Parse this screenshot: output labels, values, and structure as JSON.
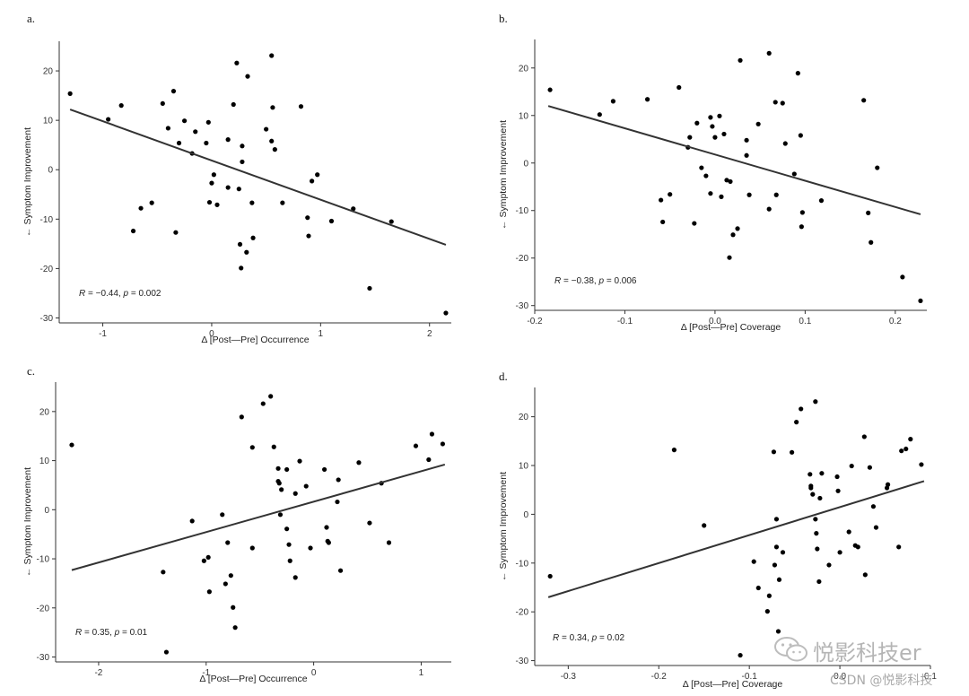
{
  "watermark": {
    "brand": "悦影科技er",
    "credit": "CSDN @悦影科技",
    "logo_icon": "wechat-icon"
  },
  "chart_data": [
    {
      "panel": "a.",
      "type": "scatter",
      "xlabel": "Δ [Post—Pre] Occurrence",
      "ylabel": "← Symptom Improvement",
      "xlim": [
        -1.4,
        2.2
      ],
      "ylim": [
        -31,
        26
      ],
      "xticks": [
        -1,
        0,
        1,
        2
      ],
      "yticks": [
        -30,
        -20,
        -10,
        0,
        10,
        20
      ],
      "grid": false,
      "annotation": {
        "r_label": "R",
        "r_value": " = −0.44, ",
        "p_label": "p",
        "p_value": " = 0.002"
      },
      "fit_line": {
        "x": [
          -1.3,
          2.15
        ],
        "y": [
          12.2,
          -15.2
        ]
      },
      "points": [
        [
          -1.3,
          15.4
        ],
        [
          -0.95,
          10.2
        ],
        [
          -0.83,
          13.0
        ],
        [
          -0.72,
          -12.4
        ],
        [
          -0.65,
          -7.8
        ],
        [
          -0.55,
          -6.7
        ],
        [
          -0.45,
          13.4
        ],
        [
          -0.4,
          8.4
        ],
        [
          -0.35,
          15.9
        ],
        [
          -0.33,
          -12.7
        ],
        [
          -0.3,
          5.4
        ],
        [
          -0.25,
          9.9
        ],
        [
          -0.18,
          3.3
        ],
        [
          -0.15,
          7.7
        ],
        [
          -0.05,
          5.4
        ],
        [
          -0.03,
          9.6
        ],
        [
          -0.02,
          -6.6
        ],
        [
          0.0,
          -2.7
        ],
        [
          0.02,
          -1.0
        ],
        [
          0.05,
          -7.1
        ],
        [
          0.15,
          6.1
        ],
        [
          0.15,
          -3.6
        ],
        [
          0.2,
          13.2
        ],
        [
          0.23,
          21.6
        ],
        [
          0.25,
          -3.9
        ],
        [
          0.26,
          -15.1
        ],
        [
          0.27,
          -19.9
        ],
        [
          0.28,
          4.8
        ],
        [
          0.28,
          1.6
        ],
        [
          0.32,
          -16.7
        ],
        [
          0.33,
          18.9
        ],
        [
          0.37,
          -6.7
        ],
        [
          0.38,
          -13.8
        ],
        [
          0.5,
          8.2
        ],
        [
          0.55,
          23.1
        ],
        [
          0.55,
          5.8
        ],
        [
          0.56,
          12.6
        ],
        [
          0.58,
          4.1
        ],
        [
          0.65,
          -6.7
        ],
        [
          0.82,
          12.8
        ],
        [
          0.88,
          -9.7
        ],
        [
          0.89,
          -13.4
        ],
        [
          0.92,
          -2.3
        ],
        [
          0.97,
          -1.0
        ],
        [
          1.1,
          -10.4
        ],
        [
          1.3,
          -7.9
        ],
        [
          1.45,
          -24.0
        ],
        [
          1.65,
          -10.5
        ],
        [
          2.15,
          -29.0
        ]
      ]
    },
    {
      "panel": "b.",
      "type": "scatter",
      "xlabel": "Δ [Post—Pre] Coverage",
      "ylabel": "← Symptom Improvement",
      "xlim": [
        -0.2,
        0.235
      ],
      "ylim": [
        -31,
        26
      ],
      "xticks": [
        -0.2,
        -0.1,
        0.0,
        0.1,
        0.2
      ],
      "xtick_labels": [
        "-0.2",
        "-0.1",
        "0.0",
        "0.1",
        "0.2"
      ],
      "yticks": [
        -30,
        -20,
        -10,
        0,
        10,
        20
      ],
      "grid": false,
      "annotation": {
        "r_label": "R",
        "r_value": " = −0.38, ",
        "p_label": "p",
        "p_value": " = 0.006"
      },
      "fit_line": {
        "x": [
          -0.185,
          0.228
        ],
        "y": [
          12.0,
          -10.8
        ]
      },
      "points": [
        [
          -0.183,
          15.4
        ],
        [
          -0.128,
          10.2
        ],
        [
          -0.113,
          13.0
        ],
        [
          -0.075,
          13.4
        ],
        [
          -0.06,
          -7.8
        ],
        [
          -0.058,
          -12.4
        ],
        [
          -0.05,
          -6.6
        ],
        [
          -0.04,
          15.9
        ],
        [
          -0.03,
          3.3
        ],
        [
          -0.028,
          5.4
        ],
        [
          -0.023,
          -12.7
        ],
        [
          -0.02,
          8.4
        ],
        [
          -0.015,
          -1.0
        ],
        [
          -0.01,
          -2.7
        ],
        [
          -0.005,
          -6.4
        ],
        [
          -0.005,
          9.6
        ],
        [
          -0.003,
          7.7
        ],
        [
          0.0,
          5.4
        ],
        [
          0.005,
          9.9
        ],
        [
          0.007,
          -7.1
        ],
        [
          0.01,
          6.1
        ],
        [
          0.013,
          -3.6
        ],
        [
          0.017,
          -3.9
        ],
        [
          0.016,
          -19.9
        ],
        [
          0.02,
          -15.1
        ],
        [
          0.025,
          -13.8
        ],
        [
          0.028,
          21.6
        ],
        [
          0.035,
          1.6
        ],
        [
          0.035,
          4.8
        ],
        [
          0.038,
          -6.7
        ],
        [
          0.048,
          8.2
        ],
        [
          0.06,
          23.1
        ],
        [
          0.06,
          -9.7
        ],
        [
          0.067,
          12.8
        ],
        [
          0.068,
          -6.7
        ],
        [
          0.075,
          12.6
        ],
        [
          0.078,
          4.1
        ],
        [
          0.088,
          -2.3
        ],
        [
          0.092,
          18.9
        ],
        [
          0.095,
          5.8
        ],
        [
          0.096,
          -13.4
        ],
        [
          0.097,
          -10.4
        ],
        [
          0.118,
          -7.9
        ],
        [
          0.165,
          13.2
        ],
        [
          0.17,
          -10.5
        ],
        [
          0.173,
          -16.7
        ],
        [
          0.18,
          -1.0
        ],
        [
          0.208,
          -24.0
        ],
        [
          0.228,
          -29.0
        ]
      ]
    },
    {
      "panel": "c.",
      "type": "scatter",
      "xlabel": "Δ [Post—Pre] Occurrence",
      "ylabel": "← Symptom Improvement",
      "xlim": [
        -2.4,
        1.28
      ],
      "ylim": [
        -31,
        26
      ],
      "xticks": [
        -2,
        -1,
        0,
        1
      ],
      "yticks": [
        -30,
        -20,
        -10,
        0,
        10,
        20
      ],
      "grid": false,
      "annotation": {
        "r_label": "R",
        "r_value": " = 0.35, ",
        "p_label": "p",
        "p_value": " = 0.01"
      },
      "fit_line": {
        "x": [
          -2.25,
          1.22
        ],
        "y": [
          -12.3,
          9.2
        ]
      },
      "points": [
        [
          -2.25,
          13.2
        ],
        [
          -1.4,
          -12.7
        ],
        [
          -1.37,
          -29.0
        ],
        [
          -1.13,
          -2.3
        ],
        [
          -1.02,
          -10.4
        ],
        [
          -0.98,
          -9.7
        ],
        [
          -0.97,
          -16.7
        ],
        [
          -0.85,
          -1.0
        ],
        [
          -0.82,
          -15.1
        ],
        [
          -0.8,
          -6.7
        ],
        [
          -0.77,
          -13.4
        ],
        [
          -0.75,
          -19.9
        ],
        [
          -0.73,
          -24.0
        ],
        [
          -0.67,
          18.9
        ],
        [
          -0.57,
          12.7
        ],
        [
          -0.57,
          -7.8
        ],
        [
          -0.47,
          21.6
        ],
        [
          -0.4,
          23.1
        ],
        [
          -0.37,
          12.8
        ],
        [
          -0.33,
          8.4
        ],
        [
          -0.33,
          5.8
        ],
        [
          -0.32,
          5.4
        ],
        [
          -0.31,
          -1.0
        ],
        [
          -0.3,
          4.1
        ],
        [
          -0.25,
          8.2
        ],
        [
          -0.25,
          -3.9
        ],
        [
          -0.23,
          -7.1
        ],
        [
          -0.22,
          -10.4
        ],
        [
          -0.17,
          -13.8
        ],
        [
          -0.17,
          3.3
        ],
        [
          -0.13,
          9.9
        ],
        [
          -0.07,
          4.8
        ],
        [
          -0.03,
          -7.8
        ],
        [
          0.1,
          8.2
        ],
        [
          0.12,
          -3.6
        ],
        [
          0.13,
          -6.4
        ],
        [
          0.14,
          -6.7
        ],
        [
          0.22,
          1.6
        ],
        [
          0.23,
          6.1
        ],
        [
          0.25,
          -12.4
        ],
        [
          0.42,
          9.6
        ],
        [
          0.52,
          -2.7
        ],
        [
          0.63,
          5.4
        ],
        [
          0.7,
          -6.7
        ],
        [
          0.95,
          13.0
        ],
        [
          1.07,
          10.2
        ],
        [
          1.1,
          15.4
        ],
        [
          1.2,
          13.4
        ]
      ]
    },
    {
      "panel": "d.",
      "type": "scatter",
      "xlabel": "Δ [Post—Pre] Coverage",
      "ylabel": "← Symptom Improvement",
      "xlim": [
        -0.337,
        0.1
      ],
      "ylim": [
        -31,
        26
      ],
      "xticks": [
        -0.3,
        -0.2,
        -0.1,
        0.0,
        0.1
      ],
      "xtick_labels": [
        "-0.3",
        "-0.2",
        "-0.1",
        "0.0",
        "0.1"
      ],
      "yticks": [
        -30,
        -20,
        -10,
        0,
        10,
        20
      ],
      "grid": false,
      "annotation": {
        "r_label": "R",
        "r_value": " = 0.34, ",
        "p_label": "p",
        "p_value": " = 0.02"
      },
      "fit_line": {
        "x": [
          -0.322,
          0.093
        ],
        "y": [
          -17.0,
          6.8
        ]
      },
      "points": [
        [
          -0.32,
          -12.7
        ],
        [
          -0.183,
          13.2
        ],
        [
          -0.15,
          -2.3
        ],
        [
          -0.11,
          -28.9
        ],
        [
          -0.095,
          -9.7
        ],
        [
          -0.09,
          -15.1
        ],
        [
          -0.08,
          -19.9
        ],
        [
          -0.078,
          -16.7
        ],
        [
          -0.073,
          12.8
        ],
        [
          -0.072,
          -10.4
        ],
        [
          -0.07,
          -6.7
        ],
        [
          -0.07,
          -1.0
        ],
        [
          -0.068,
          -24.0
        ],
        [
          -0.067,
          -13.4
        ],
        [
          -0.063,
          -7.8
        ],
        [
          -0.053,
          12.7
        ],
        [
          -0.048,
          18.9
        ],
        [
          -0.043,
          21.6
        ],
        [
          -0.033,
          8.2
        ],
        [
          -0.032,
          5.8
        ],
        [
          -0.032,
          5.4
        ],
        [
          -0.03,
          4.1
        ],
        [
          -0.027,
          23.1
        ],
        [
          -0.027,
          -1.0
        ],
        [
          -0.026,
          -3.9
        ],
        [
          -0.025,
          -7.1
        ],
        [
          -0.023,
          -13.8
        ],
        [
          -0.022,
          3.3
        ],
        [
          -0.02,
          8.4
        ],
        [
          -0.012,
          -10.4
        ],
        [
          -0.003,
          7.7
        ],
        [
          -0.002,
          4.8
        ],
        [
          0.0,
          -7.8
        ],
        [
          0.01,
          -3.6
        ],
        [
          0.013,
          9.9
        ],
        [
          0.017,
          -6.4
        ],
        [
          0.02,
          -6.7
        ],
        [
          0.027,
          15.9
        ],
        [
          0.028,
          -12.4
        ],
        [
          0.033,
          9.6
        ],
        [
          0.037,
          1.6
        ],
        [
          0.04,
          -2.7
        ],
        [
          0.052,
          5.4
        ],
        [
          0.053,
          6.1
        ],
        [
          0.065,
          -6.7
        ],
        [
          0.068,
          13.0
        ],
        [
          0.073,
          13.4
        ],
        [
          0.078,
          15.4
        ],
        [
          0.09,
          10.2
        ]
      ]
    }
  ]
}
